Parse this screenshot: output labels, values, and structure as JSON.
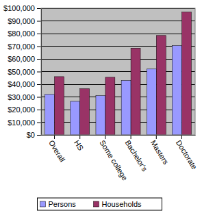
{
  "chart_data": {
    "type": "bar",
    "categories": [
      "Overall",
      "HS",
      "Some college",
      "Bachelor's",
      "Masters",
      "Doctorate"
    ],
    "series": [
      {
        "name": "Persons",
        "color": "#9999ff",
        "values": [
          32000,
          26500,
          31000,
          43000,
          52000,
          70500
        ]
      },
      {
        "name": "Households",
        "color": "#993366",
        "values": [
          46000,
          36500,
          45500,
          68500,
          78500,
          97000
        ]
      }
    ],
    "ylim": [
      0,
      100000
    ],
    "yticks": [
      {
        "value": 0,
        "label": "$0"
      },
      {
        "value": 10000,
        "label": "$10,000"
      },
      {
        "value": 20000,
        "label": "$20,000"
      },
      {
        "value": 30000,
        "label": "$30,000"
      },
      {
        "value": 40000,
        "label": "$40,000"
      },
      {
        "value": 50000,
        "label": "$50,000"
      },
      {
        "value": 60000,
        "label": "$60,000"
      },
      {
        "value": 70000,
        "label": "$70,000"
      },
      {
        "value": 80000,
        "label": "$80,000"
      },
      {
        "value": 90000,
        "label": "$90,000"
      },
      {
        "value": 100000,
        "label": "$100,000"
      }
    ],
    "grid": true,
    "legend": "bottom"
  }
}
